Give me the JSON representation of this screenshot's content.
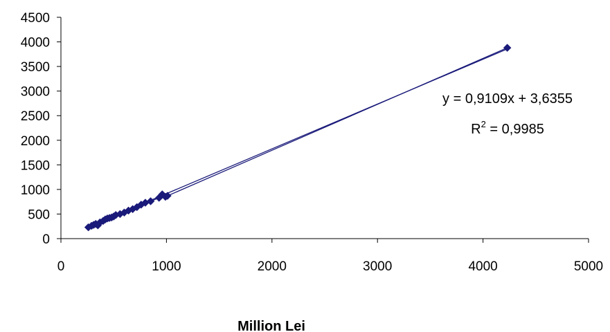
{
  "chart_data": {
    "type": "scatter",
    "title": "",
    "xlabel": "Million Lei",
    "ylabel": "",
    "xlim": [
      0,
      5000
    ],
    "ylim": [
      0,
      4500
    ],
    "x_ticks": [
      0,
      1000,
      2000,
      3000,
      4000,
      5000
    ],
    "y_ticks": [
      0,
      500,
      1000,
      1500,
      2000,
      2500,
      3000,
      3500,
      4000,
      4500
    ],
    "grid": false,
    "legend": "none",
    "series_color": "#1a1a7a",
    "trend_color": "#1a1a7a",
    "points": [
      {
        "x": 260,
        "y": 230
      },
      {
        "x": 290,
        "y": 260
      },
      {
        "x": 310,
        "y": 280
      },
      {
        "x": 330,
        "y": 300
      },
      {
        "x": 350,
        "y": 270
      },
      {
        "x": 370,
        "y": 330
      },
      {
        "x": 400,
        "y": 360
      },
      {
        "x": 420,
        "y": 390
      },
      {
        "x": 440,
        "y": 410
      },
      {
        "x": 460,
        "y": 420
      },
      {
        "x": 480,
        "y": 430
      },
      {
        "x": 500,
        "y": 450
      },
      {
        "x": 520,
        "y": 480
      },
      {
        "x": 560,
        "y": 500
      },
      {
        "x": 600,
        "y": 530
      },
      {
        "x": 640,
        "y": 570
      },
      {
        "x": 680,
        "y": 600
      },
      {
        "x": 720,
        "y": 640
      },
      {
        "x": 760,
        "y": 690
      },
      {
        "x": 800,
        "y": 730
      },
      {
        "x": 850,
        "y": 760
      },
      {
        "x": 930,
        "y": 830
      },
      {
        "x": 960,
        "y": 900
      },
      {
        "x": 990,
        "y": 850
      },
      {
        "x": 1010,
        "y": 870
      },
      {
        "x": 4230,
        "y": 3880
      }
    ],
    "trendline": {
      "slope": 0.9109,
      "intercept": 3.6355
    },
    "equation_text": "y = 0,9109x + 3,6355",
    "r2_prefix": "R",
    "r2_sup": "2",
    "r2_value": " = 0,9985"
  }
}
